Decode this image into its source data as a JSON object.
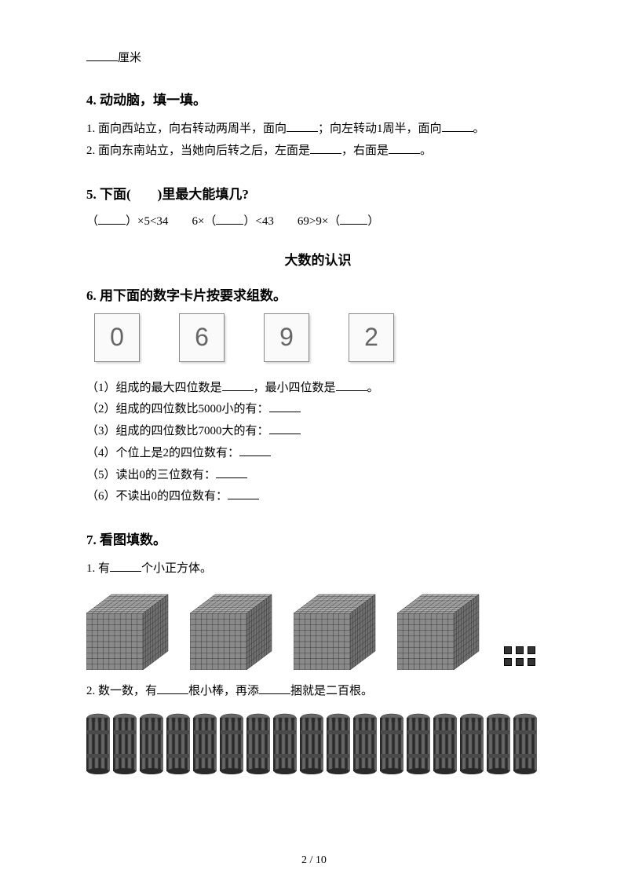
{
  "frag": {
    "text": "厘米"
  },
  "q4": {
    "heading": "4.  动动脑，填一填。",
    "l1a": "1. 面向西站立，向右转动两周半，面向",
    "l1b": "；向左转动1周半，面向",
    "l1c": "。",
    "l2a": "2. 面向东南站立，当她向后转之后，左面是",
    "l2b": "，右面是",
    "l2c": "。"
  },
  "q5": {
    "heading": "5.  下面(　　)里最大能填几?",
    "a": "（",
    "b": "）×5<34",
    "c": "6×（",
    "d": "）<43",
    "e": "69>9×（",
    "f": "）"
  },
  "center": "大数的认识",
  "q6": {
    "heading": "6.  用下面的数字卡片按要求组数。",
    "cards": [
      "0",
      "6",
      "9",
      "2"
    ],
    "s1a": "（1）组成的最大四位数是",
    "s1b": "，最小四位数是",
    "s1c": "。",
    "s2": "（2）组成的四位数比5000小的有：",
    "s3": "（3）组成的四位数比7000大的有：",
    "s4": "（4）个位上是2的四位数有：",
    "s5": "（5）读出0的三位数有：",
    "s6": "（6）不读出0的四位数有："
  },
  "q7": {
    "heading": "7.  看图填数。",
    "l1a": "1. 有",
    "l1b": "个小正方体。",
    "l2a": "2. 数一数，有",
    "l2b": "根小棒，再添",
    "l2c": "捆就是二百根。"
  },
  "page": "2 / 10",
  "style": {
    "cube": {
      "size": 110,
      "grid_lines": 10,
      "front_color": "#8a8a8a",
      "top_color": "#b0b0b0",
      "side_color": "#707070",
      "line_color": "#2a2a2a"
    },
    "sticks": {
      "count": 17,
      "strands": 8,
      "color_dark": "#2a2a2a",
      "color_light": "#666666",
      "band_color": "#4a4a4a"
    }
  }
}
